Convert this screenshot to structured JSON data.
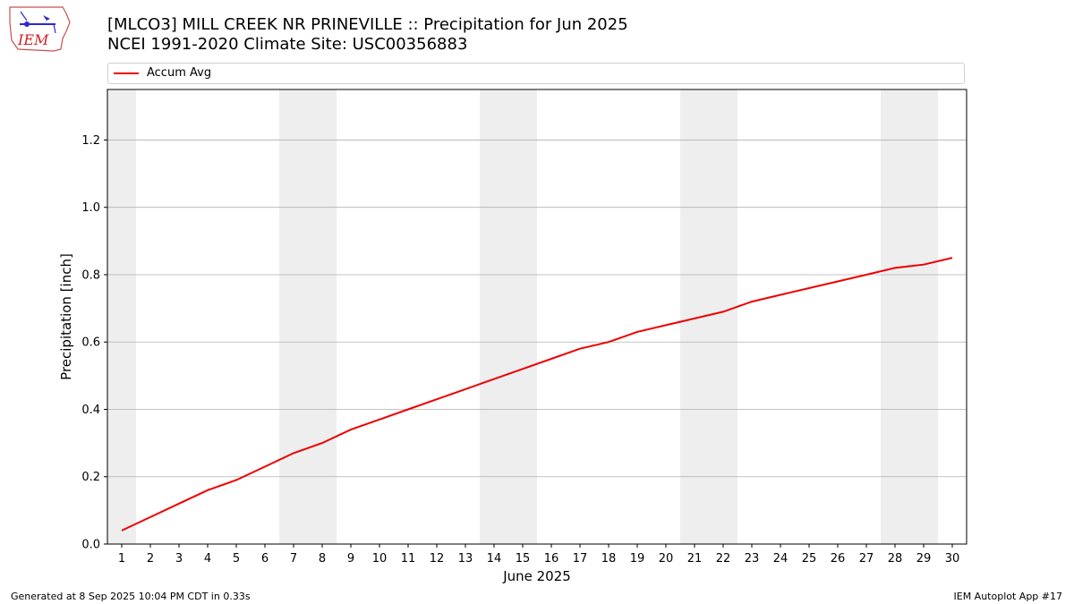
{
  "header": {
    "title_line1": "[MLCO3] MILL CREEK NR PRINEVILLE :: Precipitation for Jun 2025",
    "title_line2": "NCEI 1991-2020 Climate Site: USC00356883"
  },
  "logo": {
    "text": "IEM"
  },
  "footer": {
    "generated": "Generated at 8 Sep 2025 10:04 PM CDT in 0.33s",
    "app": "IEM Autoplot App #17"
  },
  "colors": {
    "series": "#ee0000",
    "weekend": "#eeeeee",
    "grid": "#b0b0b0"
  },
  "chart_data": {
    "type": "line",
    "title": "[MLCO3] MILL CREEK NR PRINEVILLE :: Precipitation for Jun 2025",
    "xlabel": "June 2025",
    "ylabel": "Precipitation [inch]",
    "xlim": [
      0.5,
      30.5
    ],
    "ylim": [
      0,
      1.35
    ],
    "yticks": [
      0.0,
      0.2,
      0.4,
      0.6,
      0.8,
      1.0,
      1.2
    ],
    "ytick_labels": [
      "0.0",
      "0.2",
      "0.4",
      "0.6",
      "0.8",
      "1.0",
      "1.2"
    ],
    "x": [
      1,
      2,
      3,
      4,
      5,
      6,
      7,
      8,
      9,
      10,
      11,
      12,
      13,
      14,
      15,
      16,
      17,
      18,
      19,
      20,
      21,
      22,
      23,
      24,
      25,
      26,
      27,
      28,
      29,
      30
    ],
    "grid": "horizontal",
    "legend_position": "top",
    "weekend_days": [
      1,
      7,
      8,
      14,
      15,
      21,
      22,
      28,
      29
    ],
    "series": [
      {
        "name": "Accum Avg",
        "values": [
          0.04,
          0.08,
          0.12,
          0.16,
          0.19,
          0.23,
          0.27,
          0.3,
          0.34,
          0.37,
          0.4,
          0.43,
          0.46,
          0.49,
          0.52,
          0.55,
          0.58,
          0.6,
          0.63,
          0.65,
          0.67,
          0.69,
          0.72,
          0.74,
          0.76,
          0.78,
          0.8,
          0.82,
          0.83,
          0.85
        ]
      }
    ]
  }
}
